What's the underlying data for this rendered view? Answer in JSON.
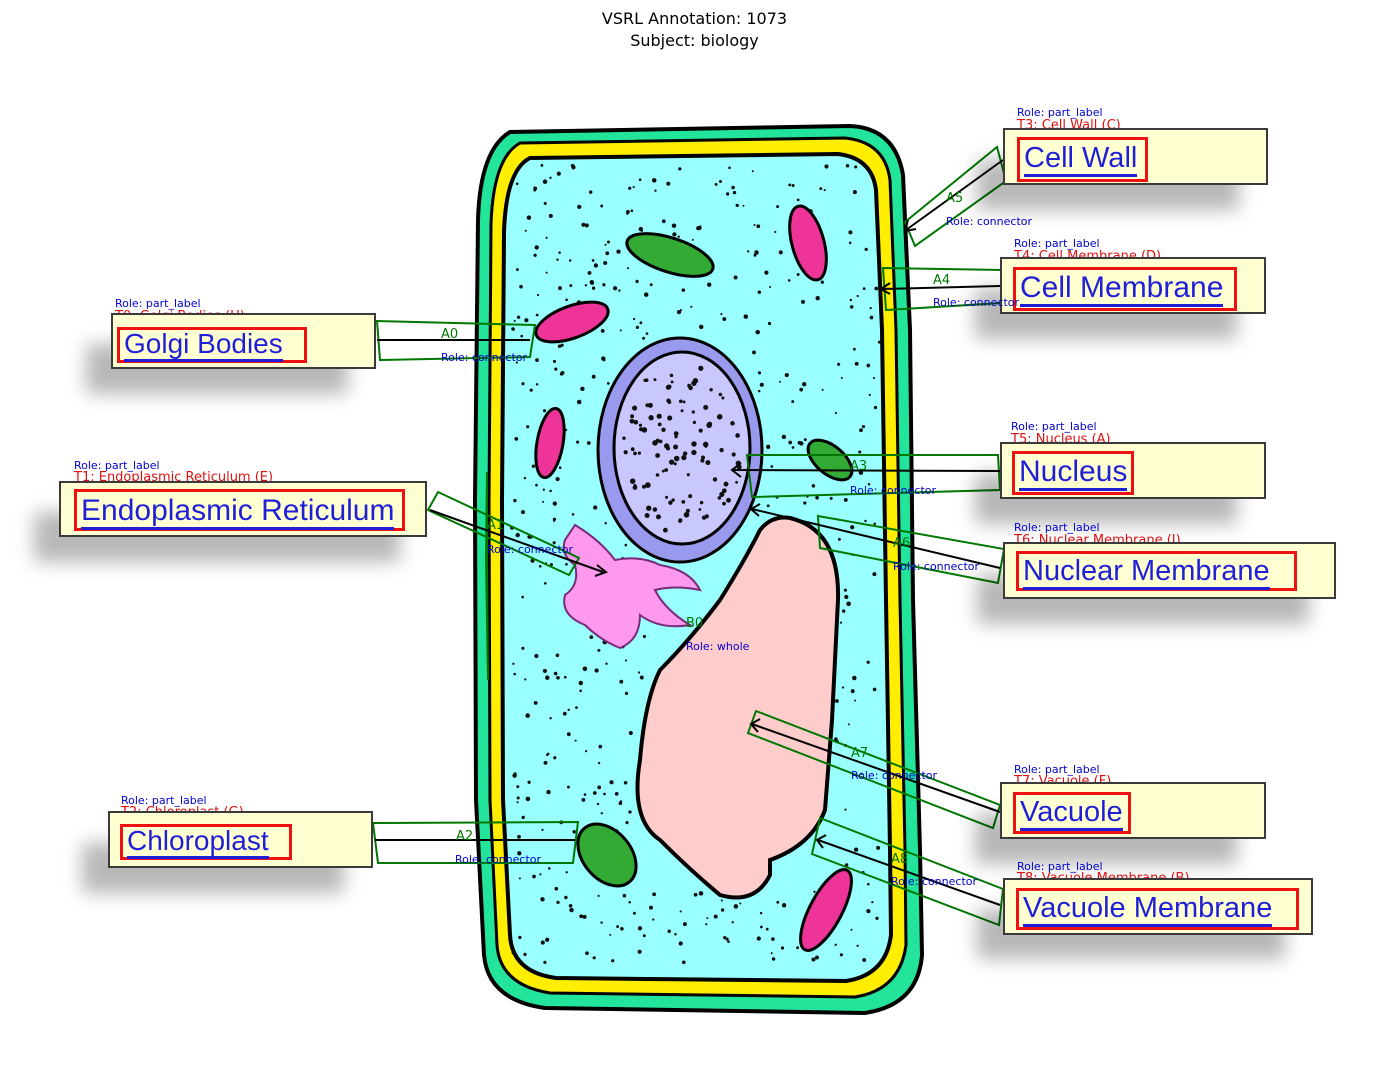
{
  "header": {
    "line1": "VSRL Annotation: 1073",
    "line2": "Subject: biology"
  },
  "colors": {
    "label_fill": "#ffffd2",
    "label_text": "#1f1fd8",
    "text_box": "#ee1111",
    "arrow_box": "#007700",
    "role_text": "#0000cc",
    "cell_wall": "#22e49a",
    "cell_membrane_ring": "#ffee00",
    "cytoplasm": "#99ffff",
    "nucleus": "#c8c8ff",
    "vacuole": "#ffcccc",
    "chloroplast": "#33aa33",
    "golgi": "#ff99ee",
    "mitochondria": "#ee3399"
  },
  "labels": [
    {
      "text": "Golgi Bodies",
      "role": "Role: part_label",
      "tid": "T0: Golgi Bodies (H)"
    },
    {
      "text": "Endoplasmic Reticulum",
      "role": "Role: part_label",
      "tid": "T1: Endoplasmic Reticulum (E)"
    },
    {
      "text": "Chloroplast",
      "role": "Role: part_label",
      "tid": "T2: Chloroplast (G)"
    },
    {
      "text": "Cell Wall",
      "role": "Role: part_label",
      "tid": "T3: Cell Wall (C)"
    },
    {
      "text": "Cell Membrane",
      "role": "Role: part_label",
      "tid": "T4: Cell Membrane (D)"
    },
    {
      "text": "Nucleus",
      "role": "Role: part_label",
      "tid": "T5: Nucleus (A)"
    },
    {
      "text": "Nuclear Membrane",
      "role": "Role: part_label",
      "tid": "T6: Nuclear Membrane (I)"
    },
    {
      "text": "Vacuole",
      "role": "Role: part_label",
      "tid": "T7: Vacuole (F)"
    },
    {
      "text": "Vacuole Membrane",
      "role": "Role: part_label",
      "tid": "T8: Vacuole Membrane (B)"
    }
  ],
  "arrows": [
    {
      "id": "A0",
      "role": "Role: connector"
    },
    {
      "id": "A1",
      "role": "Role: connector"
    },
    {
      "id": "A2",
      "role": "Role: connector"
    },
    {
      "id": "A3",
      "role": "Role: connector"
    },
    {
      "id": "A4",
      "role": "Role: connector"
    },
    {
      "id": "A5",
      "role": "Role: connector"
    },
    {
      "id": "A6",
      "role": "Role: connector"
    },
    {
      "id": "A7",
      "role": "Role: connector"
    },
    {
      "id": "A8",
      "role": "Role: connector"
    }
  ],
  "whole": {
    "id": "B0",
    "role": "Role: whole"
  }
}
